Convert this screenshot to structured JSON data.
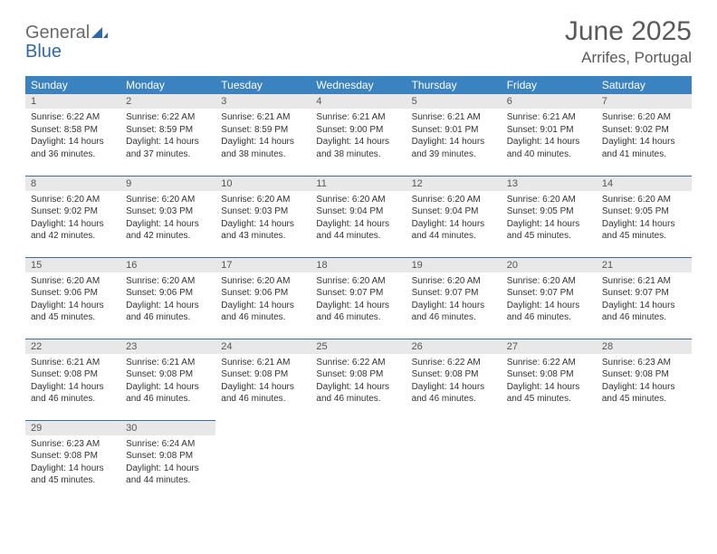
{
  "brand": {
    "part1": "General",
    "part2": "Blue"
  },
  "title": "June 2025",
  "location": "Arrifes, Portugal",
  "colors": {
    "header_bg": "#3b83c0",
    "header_text": "#ffffff",
    "row_border": "#3b6fa0",
    "daynum_bg": "#e8e8e8",
    "text": "#333333",
    "brand_gray": "#6a6a6a",
    "brand_blue": "#2f6aa8"
  },
  "weekdays": [
    "Sunday",
    "Monday",
    "Tuesday",
    "Wednesday",
    "Thursday",
    "Friday",
    "Saturday"
  ],
  "days": [
    {
      "n": 1,
      "sunrise": "6:22 AM",
      "sunset": "8:58 PM",
      "daylight": "14 hours and 36 minutes."
    },
    {
      "n": 2,
      "sunrise": "6:22 AM",
      "sunset": "8:59 PM",
      "daylight": "14 hours and 37 minutes."
    },
    {
      "n": 3,
      "sunrise": "6:21 AM",
      "sunset": "8:59 PM",
      "daylight": "14 hours and 38 minutes."
    },
    {
      "n": 4,
      "sunrise": "6:21 AM",
      "sunset": "9:00 PM",
      "daylight": "14 hours and 38 minutes."
    },
    {
      "n": 5,
      "sunrise": "6:21 AM",
      "sunset": "9:01 PM",
      "daylight": "14 hours and 39 minutes."
    },
    {
      "n": 6,
      "sunrise": "6:21 AM",
      "sunset": "9:01 PM",
      "daylight": "14 hours and 40 minutes."
    },
    {
      "n": 7,
      "sunrise": "6:20 AM",
      "sunset": "9:02 PM",
      "daylight": "14 hours and 41 minutes."
    },
    {
      "n": 8,
      "sunrise": "6:20 AM",
      "sunset": "9:02 PM",
      "daylight": "14 hours and 42 minutes."
    },
    {
      "n": 9,
      "sunrise": "6:20 AM",
      "sunset": "9:03 PM",
      "daylight": "14 hours and 42 minutes."
    },
    {
      "n": 10,
      "sunrise": "6:20 AM",
      "sunset": "9:03 PM",
      "daylight": "14 hours and 43 minutes."
    },
    {
      "n": 11,
      "sunrise": "6:20 AM",
      "sunset": "9:04 PM",
      "daylight": "14 hours and 44 minutes."
    },
    {
      "n": 12,
      "sunrise": "6:20 AM",
      "sunset": "9:04 PM",
      "daylight": "14 hours and 44 minutes."
    },
    {
      "n": 13,
      "sunrise": "6:20 AM",
      "sunset": "9:05 PM",
      "daylight": "14 hours and 45 minutes."
    },
    {
      "n": 14,
      "sunrise": "6:20 AM",
      "sunset": "9:05 PM",
      "daylight": "14 hours and 45 minutes."
    },
    {
      "n": 15,
      "sunrise": "6:20 AM",
      "sunset": "9:06 PM",
      "daylight": "14 hours and 45 minutes."
    },
    {
      "n": 16,
      "sunrise": "6:20 AM",
      "sunset": "9:06 PM",
      "daylight": "14 hours and 46 minutes."
    },
    {
      "n": 17,
      "sunrise": "6:20 AM",
      "sunset": "9:06 PM",
      "daylight": "14 hours and 46 minutes."
    },
    {
      "n": 18,
      "sunrise": "6:20 AM",
      "sunset": "9:07 PM",
      "daylight": "14 hours and 46 minutes."
    },
    {
      "n": 19,
      "sunrise": "6:20 AM",
      "sunset": "9:07 PM",
      "daylight": "14 hours and 46 minutes."
    },
    {
      "n": 20,
      "sunrise": "6:20 AM",
      "sunset": "9:07 PM",
      "daylight": "14 hours and 46 minutes."
    },
    {
      "n": 21,
      "sunrise": "6:21 AM",
      "sunset": "9:07 PM",
      "daylight": "14 hours and 46 minutes."
    },
    {
      "n": 22,
      "sunrise": "6:21 AM",
      "sunset": "9:08 PM",
      "daylight": "14 hours and 46 minutes."
    },
    {
      "n": 23,
      "sunrise": "6:21 AM",
      "sunset": "9:08 PM",
      "daylight": "14 hours and 46 minutes."
    },
    {
      "n": 24,
      "sunrise": "6:21 AM",
      "sunset": "9:08 PM",
      "daylight": "14 hours and 46 minutes."
    },
    {
      "n": 25,
      "sunrise": "6:22 AM",
      "sunset": "9:08 PM",
      "daylight": "14 hours and 46 minutes."
    },
    {
      "n": 26,
      "sunrise": "6:22 AM",
      "sunset": "9:08 PM",
      "daylight": "14 hours and 46 minutes."
    },
    {
      "n": 27,
      "sunrise": "6:22 AM",
      "sunset": "9:08 PM",
      "daylight": "14 hours and 45 minutes."
    },
    {
      "n": 28,
      "sunrise": "6:23 AM",
      "sunset": "9:08 PM",
      "daylight": "14 hours and 45 minutes."
    },
    {
      "n": 29,
      "sunrise": "6:23 AM",
      "sunset": "9:08 PM",
      "daylight": "14 hours and 45 minutes."
    },
    {
      "n": 30,
      "sunrise": "6:24 AM",
      "sunset": "9:08 PM",
      "daylight": "14 hours and 44 minutes."
    }
  ],
  "labels": {
    "sunrise": "Sunrise:",
    "sunset": "Sunset:",
    "daylight": "Daylight:"
  },
  "layout": {
    "start_weekday_index": 0,
    "cols": 7
  }
}
